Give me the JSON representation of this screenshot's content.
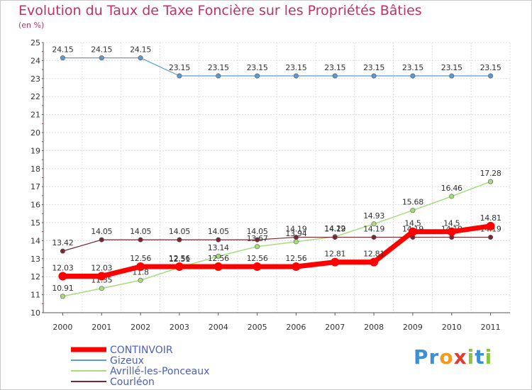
{
  "title": "Evolution du Taux de Taxe Foncière sur les Propriétés Bâties",
  "unit": "(en %)",
  "logo": {
    "letters": [
      "P",
      "r",
      "o",
      "x",
      "i",
      "t",
      "i"
    ],
    "colors": [
      "#3b8fd6",
      "#3b8fd6",
      "#f39a1e",
      "#e33b2f",
      "#8cc63e",
      "#3b8fd6",
      "#8cc63e"
    ]
  },
  "chart_data": {
    "type": "line",
    "x": [
      "2000",
      "2001",
      "2002",
      "2003",
      "2004",
      "2005",
      "2006",
      "2007",
      "2008",
      "2009",
      "2010",
      "2011"
    ],
    "ylim": [
      10,
      25
    ],
    "yticks": [
      "10",
      "11",
      "12",
      "13",
      "14",
      "15",
      "16",
      "17",
      "18",
      "19",
      "20",
      "21",
      "22",
      "23",
      "24",
      "25"
    ],
    "grid": true,
    "legend_position": "bottom-left",
    "series": [
      {
        "name": "Gizeux",
        "color": "#5b9bd5",
        "width": 1.2,
        "marker": 3.2,
        "values": [
          24.15,
          24.15,
          24.15,
          23.15,
          23.15,
          23.15,
          23.15,
          23.15,
          23.15,
          23.15,
          23.15,
          23.15
        ],
        "labels": [
          "24.15",
          "24.15",
          "24.15",
          "23.15",
          "23.15",
          "23.15",
          "23.15",
          "23.15",
          "23.15",
          "23.15",
          "23.15",
          "23.15"
        ]
      },
      {
        "name": "Avrillé-les-Ponceaux",
        "color": "#a6dc7a",
        "width": 1.5,
        "marker": 3.2,
        "values": [
          10.91,
          11.35,
          11.8,
          12.51,
          13.14,
          13.67,
          13.94,
          14.22,
          14.93,
          15.68,
          16.46,
          17.28
        ],
        "labels": [
          "10.91",
          "11.35",
          "11.8",
          "12.51",
          "13.14",
          "13.67",
          "13.94",
          "14.22",
          "14.93",
          "15.68",
          "16.46",
          "17.28"
        ]
      },
      {
        "name": "Courléon",
        "color": "#7a2530",
        "width": 1.2,
        "marker": 3.2,
        "values": [
          13.42,
          14.05,
          14.05,
          14.05,
          14.05,
          14.05,
          14.19,
          14.19,
          14.19,
          14.19,
          14.19,
          14.19
        ],
        "labels": [
          "13.42",
          "14.05",
          "14.05",
          "14.05",
          "14.05",
          "14.05",
          "14.19",
          "14.19",
          "14.19",
          "14.19",
          "14.19",
          "14.19"
        ]
      },
      {
        "name": "CONTINVOIR",
        "color": "#ff0000",
        "width": 7,
        "marker": 6,
        "values": [
          12.03,
          12.03,
          12.56,
          12.56,
          12.56,
          12.56,
          12.56,
          12.81,
          12.81,
          14.5,
          14.5,
          14.81
        ],
        "labels": [
          "12.03",
          "12.03",
          "12.56",
          "12.56",
          "12.56",
          "12.56",
          "12.56",
          "12.81",
          "12.81",
          "14.5",
          "14.5",
          "14.81"
        ]
      }
    ],
    "legend": [
      {
        "name": "CONTINVOIR",
        "color": "#ff0000",
        "width": 7
      },
      {
        "name": "Gizeux",
        "color": "#5b9bd5",
        "width": 2
      },
      {
        "name": "Avrillé-les-Ponceaux",
        "color": "#a6dc7a",
        "width": 2
      },
      {
        "name": "Courléon",
        "color": "#7a2530",
        "width": 2
      }
    ]
  }
}
